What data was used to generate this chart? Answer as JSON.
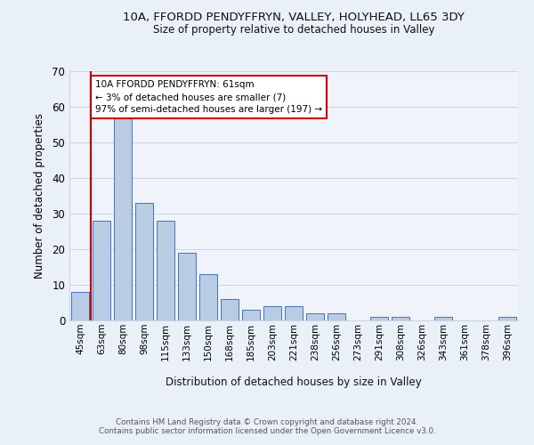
{
  "title1": "10A, FFORDD PENDYFFRYN, VALLEY, HOLYHEAD, LL65 3DY",
  "title2": "Size of property relative to detached houses in Valley",
  "xlabel": "Distribution of detached houses by size in Valley",
  "ylabel": "Number of detached properties",
  "categories": [
    "45sqm",
    "63sqm",
    "80sqm",
    "98sqm",
    "115sqm",
    "133sqm",
    "150sqm",
    "168sqm",
    "185sqm",
    "203sqm",
    "221sqm",
    "238sqm",
    "256sqm",
    "273sqm",
    "291sqm",
    "308sqm",
    "326sqm",
    "343sqm",
    "361sqm",
    "378sqm",
    "396sqm"
  ],
  "values": [
    8,
    28,
    57,
    33,
    28,
    19,
    13,
    6,
    3,
    4,
    4,
    2,
    2,
    0,
    1,
    1,
    0,
    1,
    0,
    0,
    1
  ],
  "bar_color": "#b8cce4",
  "bar_edge_color": "#4472c4",
  "vline_color": "#cc0000",
  "annotation_text": "10A FFORDD PENDYFFRYN: 61sqm\n← 3% of detached houses are smaller (7)\n97% of semi-detached houses are larger (197) →",
  "annotation_box_facecolor": "#ffffff",
  "annotation_box_edgecolor": "#cc0000",
  "ylim": [
    0,
    70
  ],
  "yticks": [
    0,
    10,
    20,
    30,
    40,
    50,
    60,
    70
  ],
  "footer1": "Contains HM Land Registry data © Crown copyright and database right 2024.",
  "footer2": "Contains public sector information licensed under the Open Government Licence v3.0.",
  "bg_color": "#eaf0f8",
  "plot_bg_color": "#f0f4fa",
  "grid_color": "#c8d4e4",
  "spine_color": "#c8d4e4"
}
